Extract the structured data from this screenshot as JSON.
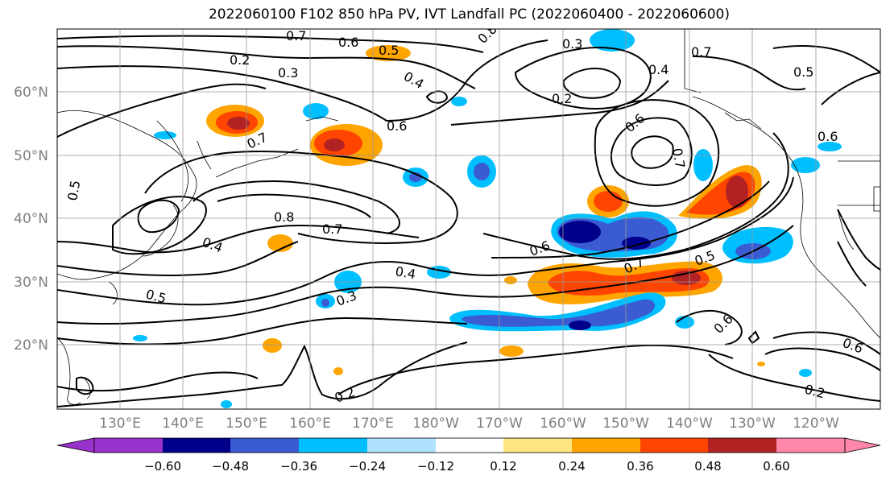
{
  "title": "2022060100 F102 850 hPa PV, IVT Landfall PC (2022060400 - 2022060600)",
  "map": {
    "lat_labels": [
      "60°N",
      "50°N",
      "40°N",
      "30°N",
      "20°N"
    ],
    "lon_labels": [
      "130°E",
      "140°E",
      "150°E",
      "160°E",
      "170°E",
      "180°W",
      "170°W",
      "160°W",
      "150°W",
      "140°W",
      "130°W",
      "120°W"
    ],
    "gridlines": true,
    "contour_labels": [
      "0.7",
      "0.6",
      "0.8",
      "0.3",
      "0.2",
      "0.3",
      "0.4",
      "0.7",
      "0.4",
      "0.5",
      "0.2",
      "0.6",
      "0.7",
      "0.6",
      "0.7",
      "0.5",
      "0.8",
      "0.7",
      "0.4",
      "0.6",
      "0.4",
      "0.7",
      "0.5",
      "0.5",
      "0.3",
      "0.6",
      "0.2",
      "0.6",
      "0.6",
      "0.5",
      "0.2"
    ]
  },
  "colorbar": {
    "ticks": [
      "−0.60",
      "−0.48",
      "−0.36",
      "−0.24",
      "−0.12",
      "0.12",
      "0.24",
      "0.36",
      "0.48",
      "0.60"
    ],
    "colors": [
      "#9932cc",
      "#00008b",
      "#3a5bd1",
      "#00bfff",
      "#b0e2ff",
      "#ffffff",
      "#ffe680",
      "#ffa500",
      "#ff4500",
      "#b22222",
      "#ff88aa"
    ]
  }
}
